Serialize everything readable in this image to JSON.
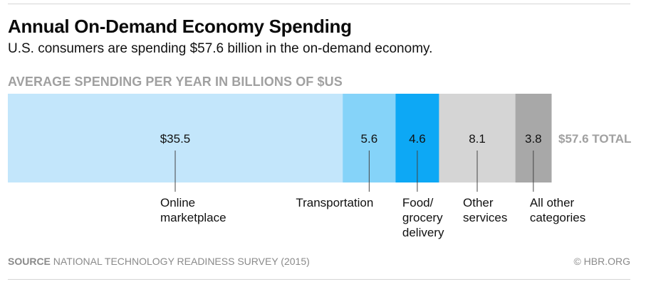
{
  "header": {
    "title": "Annual On-Demand Economy Spending",
    "subtitle": "U.S. consumers are spending $57.6 billion in the on-demand economy."
  },
  "footer": {
    "source_label": "SOURCE",
    "source_text": "NATIONAL TECHNOLOGY READINESS SURVEY (2015)",
    "credit": "© HBR.ORG"
  },
  "chart_data": {
    "type": "bar",
    "orientation": "horizontal-stacked",
    "title": "Annual On-Demand Economy Spending",
    "subtitle": "U.S. consumers are spending $57.6 billion in the on-demand economy.",
    "xlabel": "AVERAGE SPENDING PER YEAR IN BILLIONS OF $US",
    "ylabel": "",
    "categories": [
      "Online marketplace",
      "Transportation",
      "Food/ grocery delivery",
      "Other services",
      "All other categories"
    ],
    "label_lines": [
      [
        "Online",
        "marketplace"
      ],
      [
        "Transportation"
      ],
      [
        "Food/",
        "grocery",
        "delivery"
      ],
      [
        "Other",
        "services"
      ],
      [
        "All other",
        "categories"
      ]
    ],
    "values": [
      35.5,
      5.6,
      4.6,
      8.1,
      3.8
    ],
    "value_labels": [
      "$35.5",
      "5.6",
      "4.6",
      "8.1",
      "3.8"
    ],
    "colors": [
      "#c3e6fb",
      "#85d3f9",
      "#0da8f5",
      "#d5d5d5",
      "#a8a8a8"
    ],
    "total": 57.6,
    "total_label": "$57.6 TOTAL",
    "xlim": [
      0,
      57.6
    ],
    "grid": false,
    "legend": "none"
  }
}
